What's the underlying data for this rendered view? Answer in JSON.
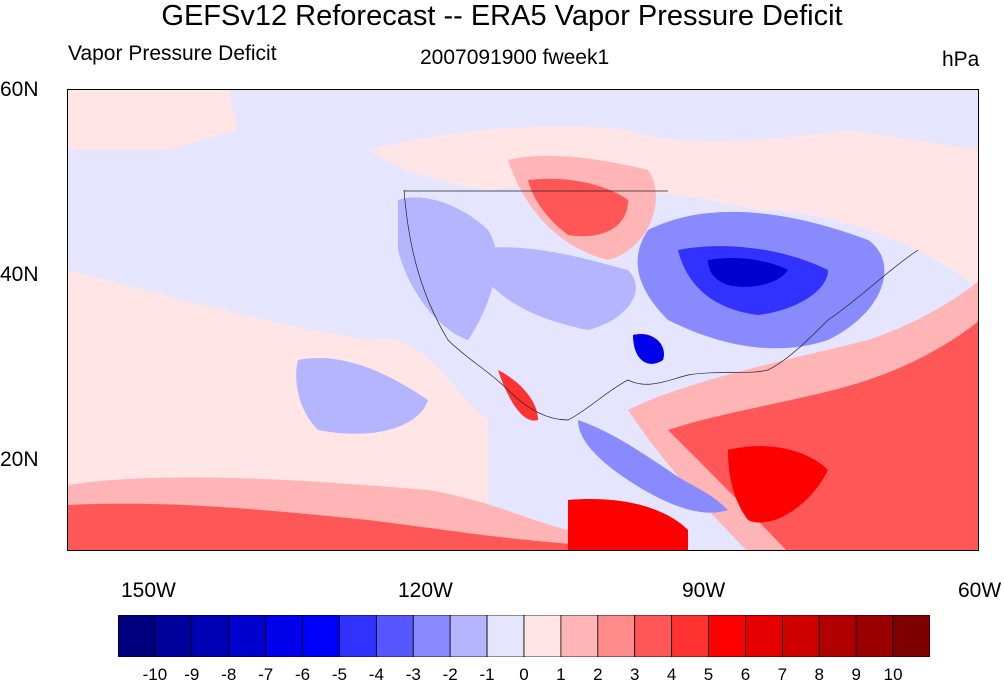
{
  "header": {
    "title": "GEFSv12 Reforecast -- ERA5 Vapor Pressure Deficit",
    "left_label": "Vapor Pressure Deficit",
    "center_label": "2007091900 fweek1",
    "right_label": "hPa"
  },
  "axes": {
    "lat_labels": [
      "60N",
      "40N",
      "20N"
    ],
    "lon_labels": [
      "150W",
      "120W",
      "90W",
      "60W"
    ]
  },
  "colorbar": {
    "labels": [
      "-10",
      "-9",
      "-8",
      "-7",
      "-6",
      "-5",
      "-4",
      "-3",
      "-2",
      "-1",
      "0",
      "1",
      "2",
      "3",
      "4",
      "5",
      "6",
      "7",
      "8",
      "9",
      "10"
    ],
    "colors": [
      "#00007f",
      "#00009a",
      "#0000b5",
      "#0000cf",
      "#0000ea",
      "#0000ff",
      "#3232ff",
      "#5757ff",
      "#8a8aff",
      "#b5b5ff",
      "#e5e5ff",
      "#ffe5e5",
      "#ffb5b5",
      "#ff8a8a",
      "#ff5757",
      "#ff3232",
      "#ff0000",
      "#e50000",
      "#cf0000",
      "#b00000",
      "#9a0000",
      "#7f0000"
    ]
  },
  "map": {
    "region": "North America",
    "background_color": "#e5e5ff"
  }
}
